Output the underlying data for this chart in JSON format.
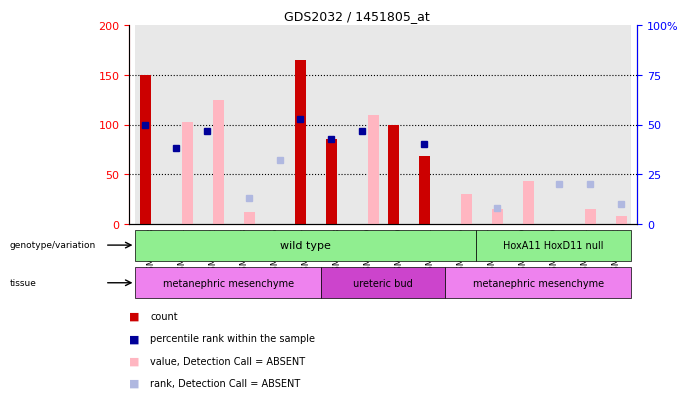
{
  "title": "GDS2032 / 1451805_at",
  "samples": [
    "GSM87678",
    "GSM87681",
    "GSM87682",
    "GSM87683",
    "GSM87686",
    "GSM87687",
    "GSM87688",
    "GSM87679",
    "GSM87680",
    "GSM87684",
    "GSM87685",
    "GSM87677",
    "GSM87689",
    "GSM87690",
    "GSM87691",
    "GSM87692"
  ],
  "count": [
    150,
    0,
    0,
    0,
    0,
    165,
    85,
    0,
    100,
    68,
    0,
    0,
    0,
    0,
    0,
    0
  ],
  "percentile": [
    50,
    38,
    47,
    0,
    0,
    53,
    43,
    47,
    0,
    40,
    0,
    0,
    0,
    0,
    0,
    0
  ],
  "value_absent": [
    0,
    103,
    125,
    12,
    0,
    0,
    0,
    110,
    0,
    0,
    30,
    15,
    43,
    0,
    15,
    8
  ],
  "rank_absent": [
    0,
    0,
    0,
    13,
    32,
    0,
    0,
    0,
    0,
    0,
    0,
    8,
    0,
    20,
    20,
    10
  ],
  "ylim_left": [
    0,
    200
  ],
  "ylim_right": [
    0,
    100
  ],
  "yticks_left": [
    0,
    50,
    100,
    150,
    200
  ],
  "yticks_right": [
    0,
    25,
    50,
    75,
    100
  ],
  "ytick_labels_right": [
    "0",
    "25",
    "50",
    "75",
    "100%"
  ],
  "count_color": "#cc0000",
  "percentile_color": "#000099",
  "value_absent_color": "#ffb6c1",
  "rank_absent_color": "#b0b8e0",
  "bg_color": "#ffffff",
  "legend_items": [
    {
      "label": "count",
      "color": "#cc0000"
    },
    {
      "label": "percentile rank within the sample",
      "color": "#000099"
    },
    {
      "label": "value, Detection Call = ABSENT",
      "color": "#ffb6c1"
    },
    {
      "label": "rank, Detection Call = ABSENT",
      "color": "#b0b8e0"
    }
  ]
}
